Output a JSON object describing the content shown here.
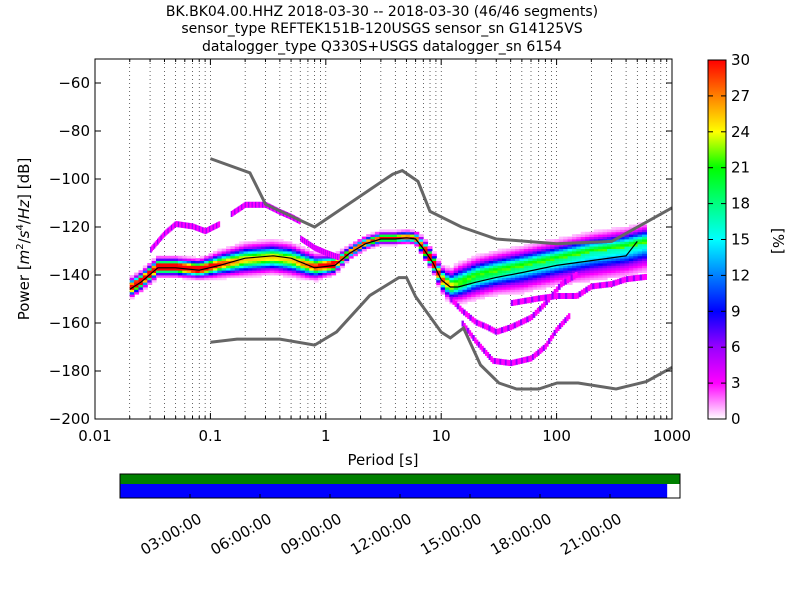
{
  "title_lines": [
    "BK.BK04.00.HHZ   2018-03-30 -- 2018-03-30  (46/46 segments)",
    "sensor_type REFTEK151B-120USGS sensor_sn G14125VS",
    "datalogger_type Q330S+USGS datalogger_sn 6154"
  ],
  "chart_data": {
    "type": "heatmap",
    "xlabel": "Period [s]",
    "ylabel": "Power [m²/s⁴/Hz] [dB]",
    "xscale": "log",
    "xlim": [
      0.01,
      1000
    ],
    "ylim": [
      -200,
      -50
    ],
    "xticks": [
      0.01,
      0.1,
      1,
      10,
      100,
      1000
    ],
    "xtick_labels": [
      "0.01",
      "0.1",
      "1",
      "10",
      "100",
      "1000"
    ],
    "yticks": [
      -200,
      -180,
      -160,
      -140,
      -120,
      -100,
      -80,
      -60
    ],
    "ytick_labels": [
      "−200",
      "−180",
      "−160",
      "−140",
      "−120",
      "−100",
      "−80",
      "−60"
    ],
    "grid": "dotted vertical",
    "colorbar": {
      "label": "[%]",
      "range": [
        0,
        30
      ],
      "ticks": [
        0,
        3,
        6,
        9,
        12,
        15,
        18,
        21,
        24,
        27,
        30
      ],
      "tick_labels": [
        "0",
        "3",
        "6",
        "9",
        "12",
        "15",
        "18",
        "21",
        "24",
        "27",
        "30"
      ],
      "colors": [
        "#ffffff",
        "#ff00ff",
        "#9900ff",
        "#0000ff",
        "#0080ff",
        "#00ffff",
        "#00ff80",
        "#00ff00",
        "#ffff00",
        "#ff8000",
        "#ff0000"
      ]
    },
    "noise_model_high": {
      "color": "#666666",
      "x": [
        0.1,
        0.22,
        0.3,
        0.8,
        3.8,
        4.6,
        6.3,
        8,
        15,
        30,
        100,
        300,
        1000
      ],
      "y": [
        -91.5,
        -97.4,
        -110.5,
        -120,
        -98,
        -96.5,
        -101,
        -113.5,
        -120,
        -125,
        -127,
        -126,
        -112
      ]
    },
    "noise_model_low": {
      "color": "#666666",
      "x": [
        0.1,
        0.17,
        0.4,
        0.8,
        1.24,
        2.4,
        4.3,
        5,
        6,
        10,
        12,
        15.6,
        21.9,
        31.6,
        45,
        70,
        101,
        154,
        328,
        600,
        1000
      ],
      "y": [
        -168,
        -166.7,
        -166.7,
        -169.2,
        -163.7,
        -148.6,
        -141.1,
        -141.1,
        -149,
        -163.8,
        -166.2,
        -162.1,
        -177.5,
        -185,
        -187.5,
        -187.5,
        -185,
        -185,
        -187.5,
        -184.4,
        -178.5
      ]
    },
    "mode_curve": {
      "color": "#000000",
      "x": [
        0.02,
        0.025,
        0.035,
        0.05,
        0.08,
        0.12,
        0.2,
        0.35,
        0.5,
        0.8,
        1.2,
        1.6,
        2.2,
        3,
        4,
        5,
        6,
        7,
        8.5,
        10,
        12,
        14,
        20,
        30,
        50,
        100,
        200,
        400,
        500
      ],
      "y": [
        -146,
        -143,
        -137,
        -137,
        -138,
        -136,
        -133,
        -132,
        -133,
        -137,
        -136,
        -131,
        -127,
        -125,
        -125,
        -124.5,
        -125,
        -129,
        -135,
        -142,
        -145,
        -145,
        -143,
        -141,
        -139,
        -136,
        -134,
        -132,
        -126
      ]
    },
    "density_band": {
      "x": [
        0.02,
        0.025,
        0.035,
        0.05,
        0.08,
        0.12,
        0.2,
        0.35,
        0.5,
        0.8,
        1.2,
        1.6,
        2.2,
        3,
        4,
        5,
        6,
        7,
        8.5,
        10,
        12,
        14,
        20,
        30,
        50,
        100,
        200,
        400,
        600
      ],
      "center": [
        -146,
        -143,
        -137,
        -137,
        -138,
        -136,
        -134,
        -133,
        -134,
        -137,
        -136,
        -131,
        -127,
        -125,
        -125,
        -124.5,
        -125,
        -129,
        -135,
        -142,
        -145,
        -144,
        -141,
        -139,
        -137,
        -134,
        -131,
        -129,
        -127
      ],
      "lower_spread": [
        3,
        3,
        3,
        3,
        3,
        4,
        5,
        5,
        5,
        4,
        3,
        2,
        2,
        2,
        2,
        2,
        2,
        3,
        3,
        4,
        5,
        6,
        7,
        7,
        8,
        8,
        9,
        9,
        9
      ],
      "upper_spread": [
        3,
        3,
        3,
        3,
        3,
        4,
        5,
        5,
        5,
        4,
        3,
        2,
        2,
        2,
        2,
        2,
        2,
        3,
        3,
        4,
        5,
        6,
        6,
        6,
        6,
        6,
        6,
        6,
        6
      ]
    },
    "low_probability_branches": [
      {
        "x": [
          0.03,
          0.04,
          0.05,
          0.07,
          0.09,
          0.12
        ],
        "y": [
          -130,
          -123,
          -119,
          -120,
          -122,
          -119
        ]
      },
      {
        "x": [
          0.15,
          0.2,
          0.3,
          0.4,
          0.5,
          0.6
        ],
        "y": [
          -115,
          -111,
          -111,
          -114,
          -116,
          -118
        ]
      },
      {
        "x": [
          0.6,
          0.8,
          1.0,
          1.3
        ],
        "y": [
          -125,
          -129,
          -131,
          -133
        ]
      },
      {
        "x": [
          12,
          15,
          20,
          25,
          30,
          40,
          60,
          80,
          110,
          150
        ],
        "y": [
          -150,
          -155,
          -160,
          -162,
          -164,
          -162,
          -158,
          -152,
          -144,
          -140
        ]
      },
      {
        "x": [
          15,
          20,
          28,
          40,
          60,
          80,
          100,
          130
        ],
        "y": [
          -160,
          -168,
          -176,
          -177,
          -175,
          -170,
          -163,
          -157
        ]
      },
      {
        "x": [
          40,
          70,
          100,
          150,
          200,
          300,
          400,
          600
        ],
        "y": [
          -152,
          -150,
          -149,
          -149,
          -145,
          -144,
          -142,
          -141
        ]
      }
    ],
    "data_availability": {
      "xtick_labels": [
        "03:00:00",
        "06:00:00",
        "09:00:00",
        "12:00:00",
        "15:00:00",
        "18:00:00",
        "21:00:00"
      ],
      "xticks_hours": [
        3,
        6,
        9,
        12,
        15,
        18,
        21
      ],
      "span_hours": [
        0,
        24
      ],
      "data_coverage_hours": [
        0,
        23.45
      ],
      "available_color": "#008000",
      "used_color": "#0000ff"
    }
  }
}
